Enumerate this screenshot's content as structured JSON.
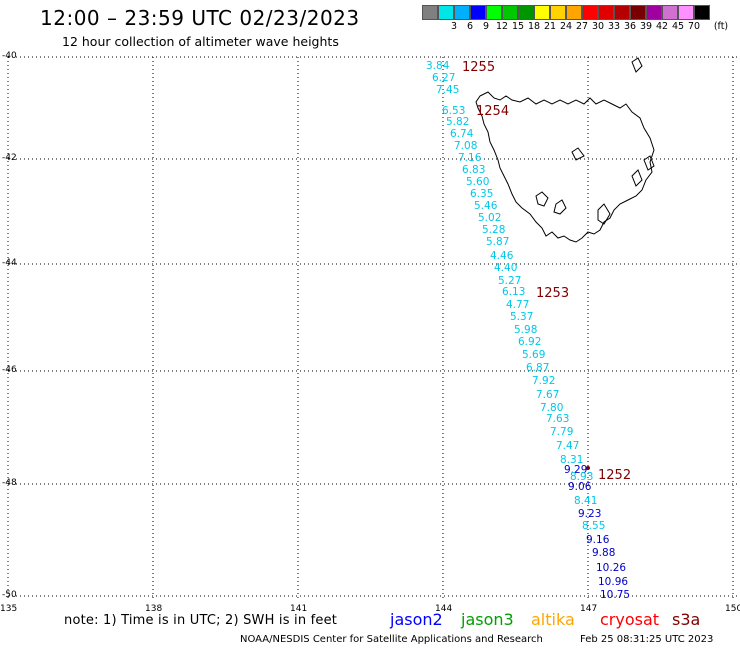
{
  "title": "12:00 – 23:59 UTC 02/23/2023",
  "subtitle": "12 hour collection of altimeter wave heights",
  "legend": {
    "unit_label": "(ft)",
    "items": [
      {
        "label": "",
        "color": "#808080"
      },
      {
        "label": "3",
        "color": "#00e5e5"
      },
      {
        "label": "6",
        "color": "#00b0ff"
      },
      {
        "label": "9",
        "color": "#0000ff"
      },
      {
        "label": "12",
        "color": "#00ff00"
      },
      {
        "label": "15",
        "color": "#00c800"
      },
      {
        "label": "18",
        "color": "#009600"
      },
      {
        "label": "21",
        "color": "#ffff00"
      },
      {
        "label": "24",
        "color": "#ffd200"
      },
      {
        "label": "27",
        "color": "#ffa500"
      },
      {
        "label": "30",
        "color": "#ff0000"
      },
      {
        "label": "33",
        "color": "#e00000"
      },
      {
        "label": "36",
        "color": "#b40000"
      },
      {
        "label": "39",
        "color": "#780000"
      },
      {
        "label": "42",
        "color": "#a000a0"
      },
      {
        "label": "45",
        "color": "#d070d0"
      },
      {
        "label": "70",
        "color": "#ff90ff"
      },
      {
        "label": "",
        "color": "#000000"
      }
    ]
  },
  "map": {
    "lat_labels": [
      "-40",
      "-42",
      "-44",
      "-46",
      "-48",
      "-50"
    ],
    "lon_labels": [
      "135",
      "138",
      "141",
      "144",
      "147",
      "150"
    ],
    "colors": {
      "coast": "#000000",
      "grid": "#000000",
      "pass_label": "#800000",
      "cyan": "#00c8e8",
      "blue": "#0000cc"
    },
    "pass_labels": [
      "1255",
      "1254",
      "1253",
      "1252"
    ],
    "observations": [
      {
        "value": "3.84",
        "color": "#00c8e8"
      },
      {
        "value": "6.27",
        "color": "#00c8e8"
      },
      {
        "value": "7.45",
        "color": "#00c8e8"
      },
      {
        "value": "6.53",
        "color": "#00c8e8"
      },
      {
        "value": "5.82",
        "color": "#00c8e8"
      },
      {
        "value": "6.74",
        "color": "#00c8e8"
      },
      {
        "value": "7.08",
        "color": "#00c8e8"
      },
      {
        "value": "7.16",
        "color": "#00c8e8"
      },
      {
        "value": "6.83",
        "color": "#00c8e8"
      },
      {
        "value": "5.60",
        "color": "#00c8e8"
      },
      {
        "value": "6.35",
        "color": "#00c8e8"
      },
      {
        "value": "5.46",
        "color": "#00c8e8"
      },
      {
        "value": "5.02",
        "color": "#00c8e8"
      },
      {
        "value": "5.28",
        "color": "#00c8e8"
      },
      {
        "value": "5.87",
        "color": "#00c8e8"
      },
      {
        "value": "4.46",
        "color": "#00c8e8"
      },
      {
        "value": "4.40",
        "color": "#00c8e8"
      },
      {
        "value": "5.27",
        "color": "#00c8e8"
      },
      {
        "value": "6.13",
        "color": "#00c8e8"
      },
      {
        "value": "4.77",
        "color": "#00c8e8"
      },
      {
        "value": "5.37",
        "color": "#00c8e8"
      },
      {
        "value": "5.98",
        "color": "#00c8e8"
      },
      {
        "value": "6.92",
        "color": "#00c8e8"
      },
      {
        "value": "5.69",
        "color": "#00c8e8"
      },
      {
        "value": "6.87",
        "color": "#00c8e8"
      },
      {
        "value": "7.92",
        "color": "#00c8e8"
      },
      {
        "value": "7.67",
        "color": "#00c8e8"
      },
      {
        "value": "7.80",
        "color": "#00c8e8"
      },
      {
        "value": "7.63",
        "color": "#00c8e8"
      },
      {
        "value": "7.79",
        "color": "#00c8e8"
      },
      {
        "value": "7.47",
        "color": "#00c8e8"
      },
      {
        "value": "8.31",
        "color": "#00c8e8"
      },
      {
        "value": "9.29",
        "color": "#0000cc"
      },
      {
        "value": "8.93",
        "color": "#00c8e8"
      },
      {
        "value": "9.06",
        "color": "#0000cc"
      },
      {
        "value": "8.41",
        "color": "#00c8e8"
      },
      {
        "value": "9.23",
        "color": "#0000cc"
      },
      {
        "value": "8.55",
        "color": "#00c8e8"
      },
      {
        "value": "9.16",
        "color": "#0000cc"
      },
      {
        "value": "9.88",
        "color": "#0000cc"
      },
      {
        "value": "10.26",
        "color": "#0000cc"
      },
      {
        "value": "10.96",
        "color": "#0000cc"
      },
      {
        "value": "10.75",
        "color": "#0000cc"
      }
    ]
  },
  "note": "note:  1) Time is in UTC;  2) SWH is in feet",
  "satellites": [
    {
      "name": "jason2",
      "color": "#0000ff"
    },
    {
      "name": "jason3",
      "color": "#00a000"
    },
    {
      "name": "altika",
      "color": "#ffa500"
    },
    {
      "name": "cryosat",
      "color": "#ff0000"
    },
    {
      "name": "s3a",
      "color": "#800000"
    }
  ],
  "footer": {
    "left": "NOAA/NESDIS Center for Satellite Applications and Research",
    "right": "Feb 25 08:31:25 UTC 2023"
  }
}
